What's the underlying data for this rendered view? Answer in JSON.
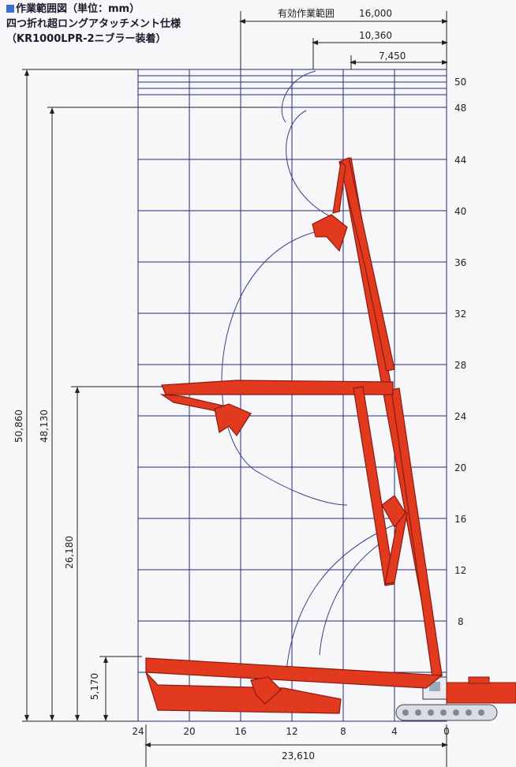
{
  "title": {
    "main": "作業範囲図（単位：mm）",
    "line2": "四つ折れ超ロングアタッチメント仕様",
    "line3": "（KR1000LPR-2ニブラー装着）"
  },
  "top_dimensions": [
    {
      "label": "有効作業範囲",
      "value": "16,000"
    },
    {
      "value": "10,360"
    },
    {
      "value": "7,450"
    }
  ],
  "left_dimensions": [
    "50,860",
    "48,130",
    "26,180",
    "5,170"
  ],
  "bottom_dimension": "23,610",
  "x_axis_labels": [
    "24",
    "20",
    "16",
    "12",
    "8",
    "4",
    "0"
  ],
  "y_axis_labels": [
    "50",
    "48",
    "44",
    "40",
    "36",
    "32",
    "28",
    "24",
    "20",
    "16",
    "12",
    "8"
  ],
  "colors": {
    "grid": "#232a7a",
    "arm": "#e23a1f",
    "arm_stroke": "#8a1a10",
    "crawler": "#d8dde6",
    "dimension": "#222"
  }
}
